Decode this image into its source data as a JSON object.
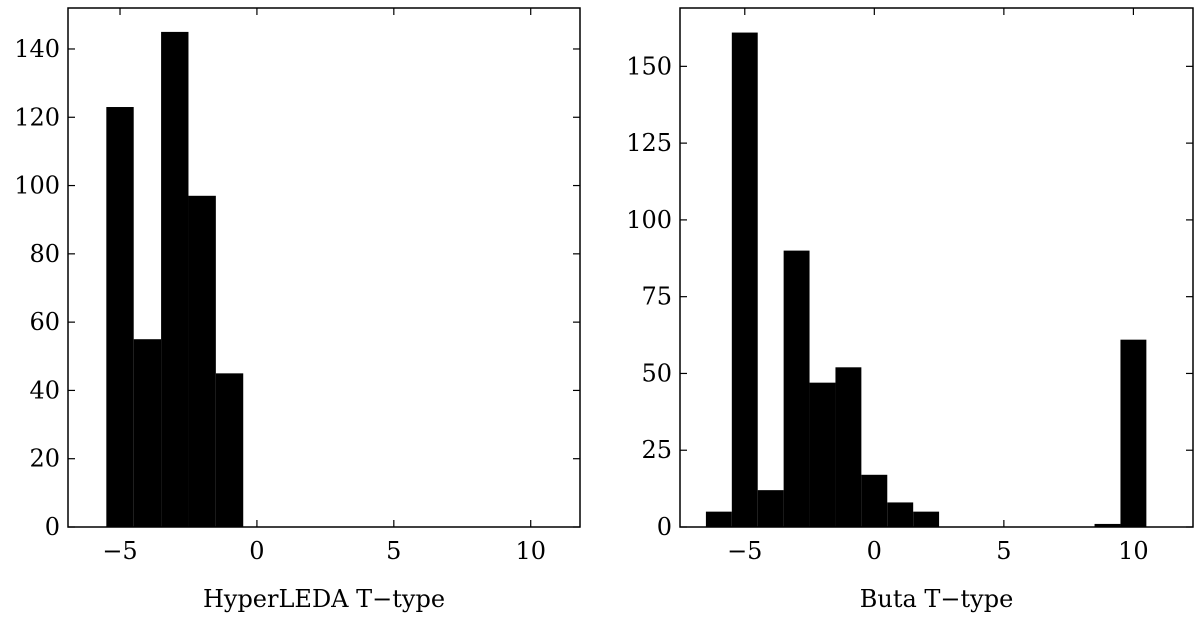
{
  "chart_data": [
    {
      "type": "histogram",
      "xlabel": "HyperLEDA T−type",
      "color": "#000000",
      "bins": [
        -5.5,
        -4.5,
        -3.5,
        -2.5,
        -1.5,
        -0.5
      ],
      "values": [
        123,
        55,
        145,
        97,
        45
      ],
      "xlim": [
        -6.9,
        11.8
      ],
      "ylim": [
        0,
        152
      ],
      "xticks": [
        {
          "value": -5,
          "label": "−5"
        },
        0,
        5,
        10
      ],
      "yticks": [
        0,
        20,
        40,
        60,
        80,
        100,
        120,
        140
      ]
    },
    {
      "type": "histogram",
      "xlabel": "Buta T−type",
      "color": "#000000",
      "bins": [
        -6.5,
        -5.5,
        -4.5,
        -3.5,
        -2.5,
        -1.5,
        -0.5,
        0.5,
        1.5,
        2.5,
        3.5,
        4.5,
        5.5,
        6.5,
        7.5,
        8.5,
        9.5,
        10.5
      ],
      "values": [
        5,
        161,
        12,
        90,
        47,
        52,
        17,
        8,
        5,
        0,
        0,
        0,
        0,
        0,
        0,
        1,
        61
      ],
      "xlim": [
        -7.5,
        12.3
      ],
      "ylim": [
        0,
        169
      ],
      "xticks": [
        {
          "value": -5,
          "label": "−5"
        },
        0,
        5,
        10
      ],
      "yticks": [
        0,
        25,
        50,
        75,
        100,
        125,
        150
      ]
    }
  ]
}
